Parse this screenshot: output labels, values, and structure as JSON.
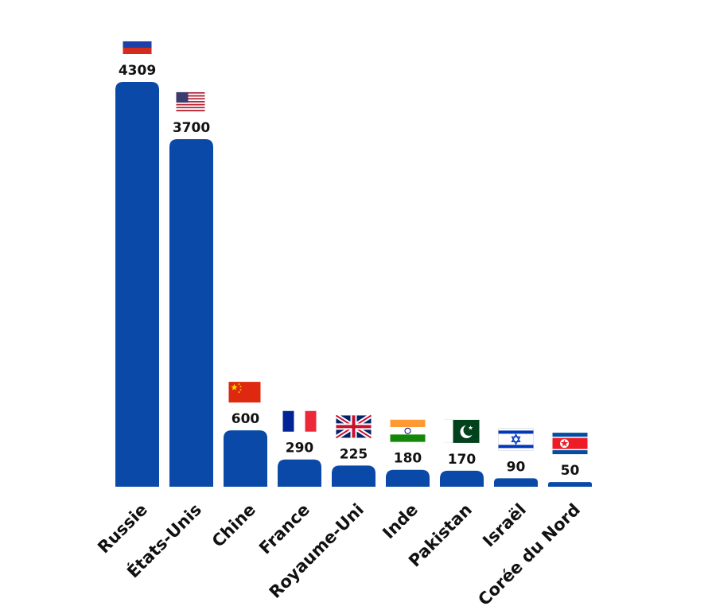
{
  "chart_data": {
    "type": "bar",
    "categories": [
      "Russie",
      "États-Unis",
      "Chine",
      "France",
      "Royaume-Uni",
      "Inde",
      "Pakistan",
      "Israël",
      "Corée du Nord"
    ],
    "values": [
      4309,
      3700,
      600,
      290,
      225,
      180,
      170,
      90,
      50
    ],
    "color": "#0a49a8"
  }
}
